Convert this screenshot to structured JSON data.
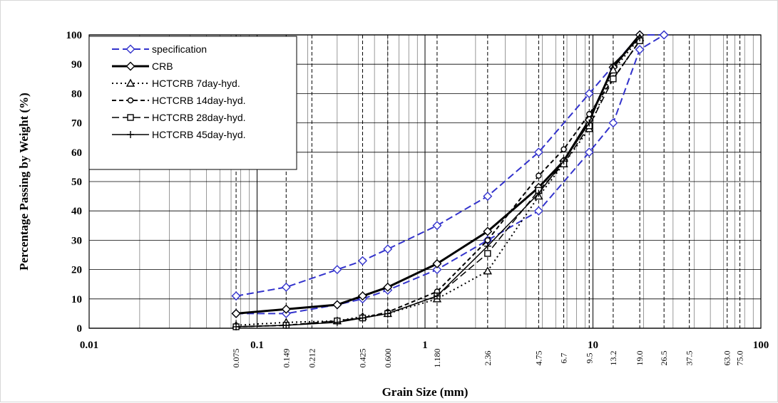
{
  "chart_data": {
    "type": "line",
    "xscale": "log",
    "xlim": [
      0.01,
      100
    ],
    "ylim": [
      0,
      100
    ],
    "xlabel": "Grain Size (mm)",
    "ylabel": "Percentage Passing by Weight (%)",
    "x_ticks": [
      "0.01",
      "0.1",
      "1",
      "10",
      "100"
    ],
    "y_ticks": [
      "0",
      "10",
      "20",
      "30",
      "40",
      "50",
      "60",
      "70",
      "80",
      "90",
      "100"
    ],
    "sieve_sizes": [
      {
        "label": "0.075",
        "value": 0.075
      },
      {
        "label": "0.149",
        "value": 0.149
      },
      {
        "label": "0.212",
        "value": 0.212
      },
      {
        "label": "0.425",
        "value": 0.425
      },
      {
        "label": "0.600",
        "value": 0.6
      },
      {
        "label": "1.180",
        "value": 1.18
      },
      {
        "label": "2.36",
        "value": 2.36
      },
      {
        "label": "4.75",
        "value": 4.75
      },
      {
        "label": "6.7",
        "value": 6.7
      },
      {
        "label": "9.5",
        "value": 9.5
      },
      {
        "label": "13.2",
        "value": 13.2
      },
      {
        "label": "19.0",
        "value": 19.0
      },
      {
        "label": "26.5",
        "value": 26.5
      },
      {
        "label": "37.5",
        "value": 37.5
      },
      {
        "label": "63.0",
        "value": 63.0
      },
      {
        "label": "75.0",
        "value": 75.0
      }
    ],
    "grid": true,
    "legend_position": "top-left",
    "series": [
      {
        "name": "specification",
        "color": "#3333cc",
        "dash": "10,5",
        "marker": "diamond-open",
        "width": 2,
        "points": [
          [
            0.075,
            11
          ],
          [
            0.149,
            14
          ],
          [
            0.3,
            20
          ],
          [
            0.425,
            23
          ],
          [
            0.6,
            27
          ],
          [
            1.18,
            35
          ],
          [
            2.36,
            45
          ],
          [
            4.75,
            60
          ],
          [
            9.5,
            80
          ],
          [
            19.0,
            100
          ],
          [
            26.5,
            100
          ]
        ]
      },
      {
        "name": "specification",
        "color": "#3333cc",
        "dash": "10,5",
        "marker": "diamond-open",
        "width": 2,
        "legend": false,
        "points": [
          [
            0.075,
            5
          ],
          [
            0.149,
            5
          ],
          [
            0.3,
            8
          ],
          [
            0.425,
            10
          ],
          [
            0.6,
            13
          ],
          [
            1.18,
            20
          ],
          [
            2.36,
            30
          ],
          [
            4.75,
            40
          ],
          [
            9.5,
            60
          ],
          [
            13.2,
            70
          ],
          [
            19.0,
            95
          ],
          [
            26.5,
            100
          ]
        ]
      },
      {
        "name": "CRB",
        "color": "#000000",
        "dash": "",
        "marker": "diamond-open",
        "width": 3,
        "points": [
          [
            0.075,
            5
          ],
          [
            0.149,
            6.5
          ],
          [
            0.3,
            8
          ],
          [
            0.425,
            11
          ],
          [
            0.6,
            14
          ],
          [
            1.18,
            22
          ],
          [
            2.36,
            33
          ],
          [
            4.75,
            48
          ],
          [
            6.7,
            57
          ],
          [
            9.5,
            71
          ],
          [
            13.2,
            89
          ],
          [
            19.0,
            100
          ]
        ]
      },
      {
        "name": "HCTCRB   7day-hyd.",
        "color": "#000000",
        "dash": "2,4",
        "marker": "triangle-open",
        "width": 2,
        "points": [
          [
            0.075,
            1
          ],
          [
            0.149,
            2
          ],
          [
            0.3,
            2.5
          ],
          [
            0.425,
            4
          ],
          [
            0.6,
            5
          ],
          [
            1.18,
            10
          ],
          [
            2.36,
            19.5
          ],
          [
            4.75,
            45
          ],
          [
            6.7,
            56
          ],
          [
            9.5,
            68
          ],
          [
            13.2,
            88
          ],
          [
            19.0,
            99
          ]
        ]
      },
      {
        "name": "HCTCRB 14day-hyd.",
        "color": "#000000",
        "dash": "6,4",
        "marker": "circle-open",
        "width": 2,
        "points": [
          [
            0.075,
            0.5
          ],
          [
            0.149,
            1
          ],
          [
            0.3,
            2.5
          ],
          [
            0.425,
            3.5
          ],
          [
            0.6,
            5.5
          ],
          [
            1.18,
            12.5
          ],
          [
            2.36,
            30
          ],
          [
            4.75,
            52
          ],
          [
            6.7,
            61
          ],
          [
            9.5,
            73
          ],
          [
            13.2,
            85
          ],
          [
            19.0,
            98
          ]
        ]
      },
      {
        "name": "HCTCRB 28day-hyd.",
        "color": "#000000",
        "dash": "10,5",
        "marker": "square-open",
        "width": 1.5,
        "points": [
          [
            0.075,
            0.5
          ],
          [
            0.149,
            1
          ],
          [
            0.3,
            2.5
          ],
          [
            0.425,
            3.5
          ],
          [
            0.6,
            5
          ],
          [
            1.18,
            11
          ],
          [
            2.36,
            25.5
          ],
          [
            4.75,
            47
          ],
          [
            6.7,
            56
          ],
          [
            9.5,
            69
          ],
          [
            13.2,
            85
          ],
          [
            19.0,
            98
          ]
        ]
      },
      {
        "name": "HCTCRB 45day-hyd.",
        "color": "#000000",
        "dash": "",
        "marker": "plus",
        "width": 1.5,
        "points": [
          [
            0.075,
            0.5
          ],
          [
            0.149,
            1
          ],
          [
            0.3,
            2
          ],
          [
            0.425,
            3.5
          ],
          [
            0.6,
            5
          ],
          [
            1.18,
            11
          ],
          [
            2.36,
            28
          ],
          [
            4.75,
            46
          ],
          [
            6.7,
            57
          ],
          [
            9.5,
            70
          ],
          [
            13.2,
            90
          ],
          [
            19.0,
            99
          ]
        ]
      }
    ]
  }
}
